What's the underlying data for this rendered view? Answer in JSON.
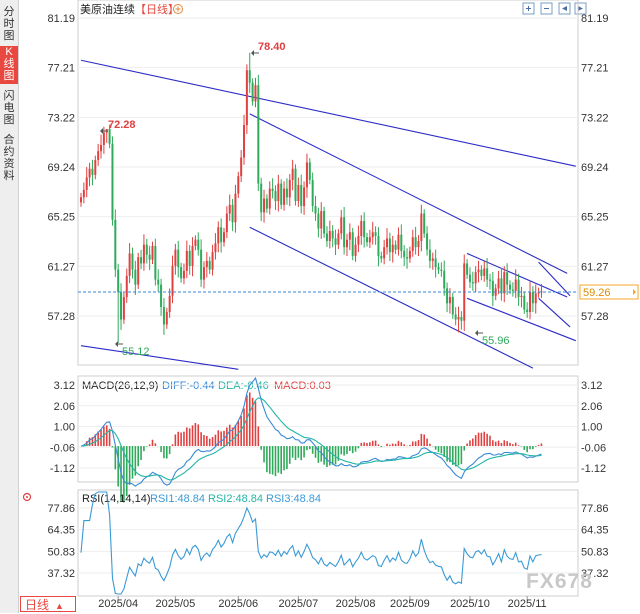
{
  "sidebar": {
    "tabs": [
      {
        "label": "分时图",
        "active": false
      },
      {
        "label": "K线图",
        "active": true
      },
      {
        "label": "闪电图",
        "active": false
      },
      {
        "label": "合约资料",
        "active": false
      }
    ]
  },
  "header": {
    "title": "美原油连续",
    "period_tag": "【日线】",
    "add_icon": "plus-circle-icon",
    "tool_icons": [
      "zoom-in-icon",
      "zoom-out-icon",
      "prev-icon",
      "next-icon"
    ]
  },
  "bottom": {
    "period_label": "日线",
    "arrow_icon": "triangle-up-icon"
  },
  "watermark": "FX678",
  "colors": {
    "up": "#e04040",
    "down": "#2eaa5a",
    "trend": "#2c2cc8",
    "price_box": "#f5a623",
    "diff": "#3a8ad6",
    "dea": "#23b5a6",
    "rsi": "#3a9ad6"
  },
  "chart_data": [
    {
      "type": "candlestick",
      "title": "美原油连续",
      "y_ticks": [
        "81.19",
        "77.21",
        "73.22",
        "69.24",
        "65.25",
        "61.27",
        "57.28"
      ],
      "ylim": [
        53.3,
        81.19
      ],
      "x_ticks": [
        "2025/04",
        "2025/05",
        "2025/06",
        "2025/07",
        "2025/08",
        "2025/09",
        "2025/10",
        "2025/11"
      ],
      "current_price": "59.26",
      "annotations": [
        {
          "text": "78.40",
          "label": "high"
        },
        {
          "text": "72.28",
          "label": "local-high"
        },
        {
          "text": "55.12",
          "label": "low"
        },
        {
          "text": "55.96",
          "label": "local-low"
        }
      ],
      "trend_lines": [
        {
          "from": [
            0,
            77.8
          ],
          "to": [
            173,
            69.3
          ]
        },
        {
          "from": [
            0,
            54.9
          ],
          "to": [
            55,
            53.0
          ]
        },
        {
          "from": [
            59,
            73.5
          ],
          "to": [
            170,
            60.7
          ]
        },
        {
          "from": [
            59,
            64.4
          ],
          "to": [
            158,
            53.1
          ]
        },
        {
          "from": [
            135,
            62.3
          ],
          "to": [
            170,
            58.8
          ]
        },
        {
          "from": [
            135,
            58.7
          ],
          "to": [
            173,
            55.3
          ]
        },
        {
          "from": [
            160,
            61.6
          ],
          "to": [
            171,
            58.9
          ]
        },
        {
          "from": [
            160,
            58.7
          ],
          "to": [
            171,
            56.4
          ]
        }
      ],
      "closes": [
        66.8,
        67.4,
        68.4,
        69.1,
        68.6,
        69.8,
        70.5,
        71.0,
        72.0,
        72.28,
        71.1,
        65.0,
        61.0,
        59.2,
        57.0,
        58.8,
        60.5,
        62.3,
        61.0,
        59.8,
        62.0,
        61.5,
        63.0,
        62.2,
        61.8,
        62.9,
        60.2,
        59.8,
        58.0,
        56.6,
        57.6,
        58.9,
        61.3,
        62.6,
        61.2,
        60.3,
        60.9,
        62.5,
        61.3,
        62.9,
        63.4,
        62.6,
        60.2,
        61.2,
        61.7,
        61.0,
        62.4,
        63.1,
        64.4,
        63.2,
        64.0,
        65.5,
        66.2,
        64.8,
        67.1,
        68.5,
        70.0,
        72.6,
        77.0,
        76.0,
        74.5,
        75.8,
        67.9,
        65.6,
        66.7,
        65.9,
        67.5,
        67.3,
        66.5,
        67.9,
        66.2,
        67.5,
        66.8,
        68.2,
        69.1,
        66.5,
        67.8,
        66.1,
        67.6,
        69.6,
        68.2,
        66.1,
        65.5,
        64.3,
        65.7,
        63.9,
        63.3,
        64.1,
        63.5,
        63.0,
        63.9,
        65.2,
        62.8,
        63.4,
        64.0,
        62.1,
        63.0,
        63.7,
        64.9,
        63.6,
        63.2,
        63.6,
        64.0,
        63.7,
        62.1,
        61.9,
        62.8,
        63.5,
        62.4,
        63.0,
        62.6,
        63.8,
        62.5,
        62.0,
        61.9,
        62.5,
        63.6,
        62.8,
        63.3,
        65.5,
        63.9,
        62.6,
        61.7,
        61.9,
        61.2,
        61.0,
        60.9,
        59.5,
        58.3,
        58.8,
        57.4,
        57.0,
        57.2,
        56.9,
        61.5,
        60.6,
        60.0,
        59.9,
        60.8,
        61.0,
        60.5,
        61.1,
        60.2,
        60.1,
        58.9,
        59.5,
        60.3,
        59.1,
        60.8,
        59.8,
        59.4,
        59.3,
        60.2,
        58.8,
        58.9,
        57.8,
        57.6,
        59.2,
        58.3,
        59.1,
        59.2,
        59.26
      ]
    },
    {
      "type": "line",
      "title": "MACD(26,12,9)",
      "legend": [
        {
          "name": "DIFF:-0.44",
          "color": "#3a8ad6"
        },
        {
          "name": "DEA:-0.46",
          "color": "#23b5a6"
        },
        {
          "name": "MACD:0.03",
          "color": "#e04040"
        }
      ],
      "y_ticks": [
        "3.12",
        "2.06",
        "1.00",
        "-0.06",
        "-1.12"
      ],
      "ylim": [
        -1.7,
        3.3
      ]
    },
    {
      "type": "line",
      "title": "RSI(14,14,14)",
      "legend": [
        {
          "name": "RSI1:48.84",
          "color": "#3a9ad6"
        },
        {
          "name": "RSI2:48.84",
          "color": "#23b5a6"
        },
        {
          "name": "RSI3:48.84",
          "color": "#3a9ad6"
        }
      ],
      "y_ticks": [
        "77.86",
        "64.35",
        "50.83",
        "37.32"
      ],
      "ylim": [
        25,
        80
      ]
    }
  ]
}
